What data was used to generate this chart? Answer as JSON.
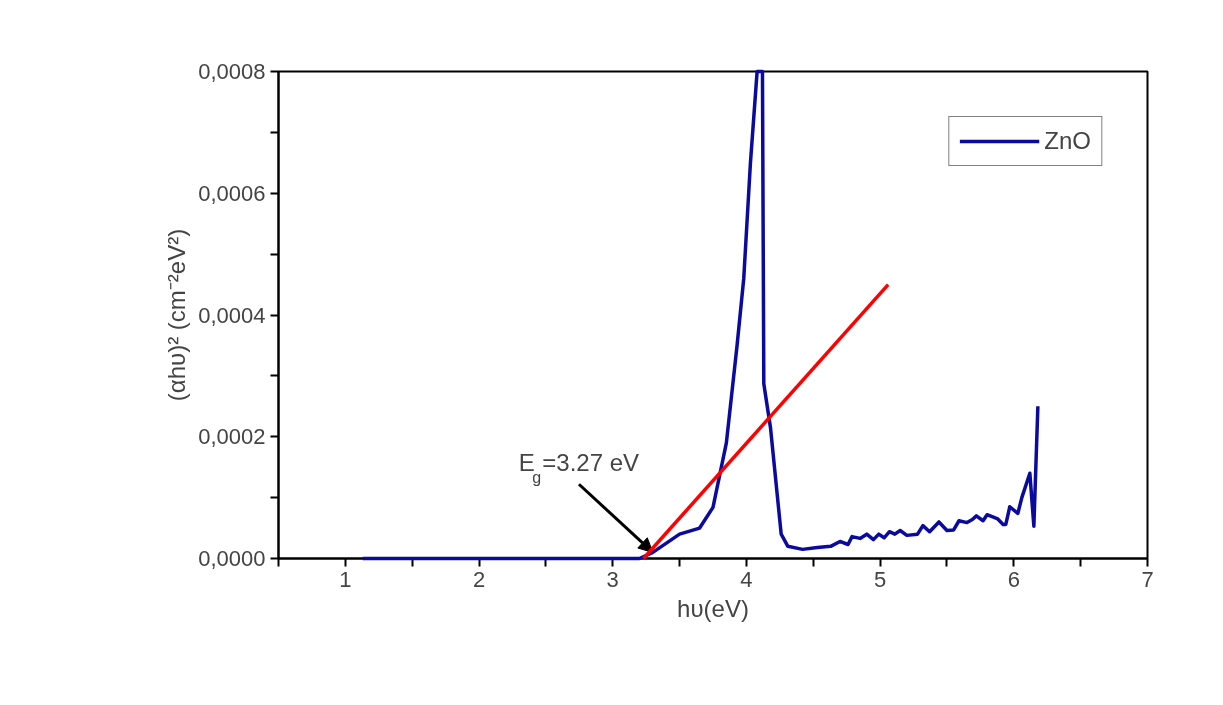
{
  "chart_data": {
    "type": "line",
    "xlabel": "hυ(eV)",
    "ylabel": "(αhυ)² (cm⁻²eV²)",
    "xlim": [
      0.5,
      7
    ],
    "ylim": [
      0,
      0.0008
    ],
    "xticks": [
      {
        "value": 0.5,
        "label": null
      },
      1,
      {
        "value": 1.5,
        "label": null
      },
      2,
      {
        "value": 2.5,
        "label": null
      },
      3,
      {
        "value": 3.5,
        "label": null
      },
      4,
      {
        "value": 4.5,
        "label": null
      },
      5,
      {
        "value": 5.5,
        "label": null
      },
      6,
      {
        "value": 6.5,
        "label": null
      },
      7
    ],
    "yticks": [
      {
        "value": 0,
        "label": "0,0000"
      },
      {
        "value": 0.0001,
        "label": null
      },
      {
        "value": 0.0002,
        "label": "0,0002"
      },
      {
        "value": 0.0003,
        "label": null
      },
      {
        "value": 0.0004,
        "label": "0,0004"
      },
      {
        "value": 0.0005,
        "label": null
      },
      {
        "value": 0.0006,
        "label": "0,0006"
      },
      {
        "value": 0.0007,
        "label": null
      },
      {
        "value": 0.0008,
        "label": "0,0008"
      }
    ],
    "grid": false,
    "legend": "top right",
    "series": [
      {
        "name": "ZnO",
        "color": "#0a0aa0",
        "x": [
          1.13,
          2.0,
          3.0,
          3.2,
          3.3,
          3.5,
          3.65,
          3.75,
          3.85,
          3.93,
          3.98,
          4.03,
          4.08,
          4.12,
          4.13,
          4.18,
          4.26,
          4.31,
          4.42,
          4.53,
          4.63,
          4.7,
          4.76,
          4.79,
          4.85,
          4.9,
          4.95,
          4.99,
          5.03,
          5.07,
          5.11,
          5.15,
          5.2,
          5.28,
          5.32,
          5.37,
          5.44,
          5.5,
          5.55,
          5.59,
          5.65,
          5.69,
          5.72,
          5.77,
          5.8,
          5.88,
          5.92,
          5.94,
          5.97,
          6.03,
          6.06,
          6.12,
          6.15,
          6.18
        ],
        "values": [
          0,
          0,
          0,
          0,
          1e-05,
          4e-05,
          5e-05,
          8.4e-05,
          0.00019,
          0.00035,
          0.00046,
          0.00065,
          0.0008,
          0.0008,
          0.000287,
          0.000215,
          4e-05,
          2e-05,
          1.5e-05,
          1.8e-05,
          2e-05,
          2.8e-05,
          2.3e-05,
          3.6e-05,
          3.3e-05,
          4e-05,
          3.1e-05,
          4e-05,
          3.4e-05,
          4.4e-05,
          4e-05,
          4.6e-05,
          3.8e-05,
          4e-05,
          5.4e-05,
          4.4e-05,
          6e-05,
          4.6e-05,
          4.7e-05,
          6.2e-05,
          5.9e-05,
          6.4e-05,
          7e-05,
          6.2e-05,
          7.2e-05,
          6.5e-05,
          5.6e-05,
          5.6e-05,
          8.5e-05,
          7.4e-05,
          0.0001,
          0.00014,
          5.3e-05,
          0.00025
        ]
      },
      {
        "color": "#ff0000",
        "x": [
          3.23,
          5.06
        ],
        "values": [
          0,
          0.00045
        ]
      }
    ],
    "annotations": [
      {
        "text": "E$_{g}$=3.27 eV",
        "x": 3.3,
        "y": 1e-05
      }
    ]
  }
}
